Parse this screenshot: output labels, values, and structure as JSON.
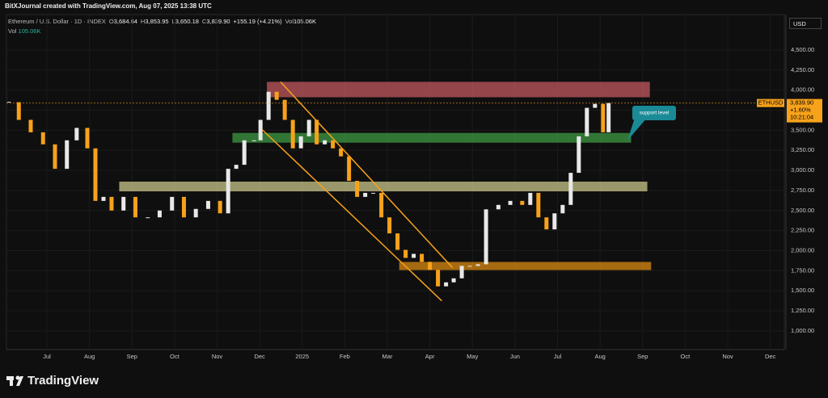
{
  "header": {
    "title": "BitXJournal created with TradingView.com, Aug 07, 2025 13:38 UTC",
    "symbol": "Ethereum / U.S. Dollar · 1D · INDEX",
    "ohlc": [
      {
        "key": "O",
        "text": "3,684.64"
      },
      {
        "key": "H",
        "text": "3,853.95"
      },
      {
        "key": "L",
        "text": "3,650.18"
      },
      {
        "key": "C",
        "text": "3,839.90"
      }
    ],
    "change": "+155.19 (+4.21%)",
    "vol_key": "Vol",
    "vol": "105.06K",
    "vol_row_key": "Vol",
    "vol_row": "105.06K"
  },
  "currency": "USD",
  "footer": {
    "brand": "TradingView"
  },
  "chart_data": {
    "type": "candlestick",
    "x": [
      -0.89,
      -0.66,
      -0.38,
      -0.09,
      0.19,
      0.47,
      0.7,
      0.95,
      1.14,
      1.33,
      1.52,
      1.8,
      2.08,
      2.37,
      2.65,
      2.94,
      3.22,
      3.5,
      3.79,
      4.07,
      4.26,
      4.45,
      4.64,
      4.87,
      5.02,
      5.21,
      5.4,
      5.59,
      5.78,
      5.97,
      6.16,
      6.34,
      6.53,
      6.72,
      6.91,
      7.1,
      7.29,
      7.48,
      7.67,
      7.86,
      8.05,
      8.24,
      8.43,
      8.62,
      8.81,
      9.0,
      9.19,
      9.38,
      9.56,
      9.75,
      9.94,
      10.13,
      10.32,
      10.61,
      10.89,
      11.17,
      11.36,
      11.55,
      11.74,
      11.93,
      12.12,
      12.31,
      12.5,
      12.69,
      12.88,
      13.07,
      13.2
    ],
    "values": [
      3850,
      3630,
      3475,
      3325,
      3020,
      3375,
      3530,
      3275,
      2620,
      2670,
      2500,
      2670,
      2415,
      2415,
      2500,
      2670,
      2415,
      2520,
      2620,
      2465,
      3020,
      3070,
      3375,
      3375,
      3630,
      3980,
      3880,
      3630,
      3275,
      3425,
      3630,
      3325,
      3375,
      3275,
      3175,
      2870,
      2670,
      2720,
      2720,
      2415,
      2215,
      2010,
      1910,
      1960,
      1860,
      1760,
      1555,
      1605,
      1655,
      1810,
      1810,
      1830,
      2515,
      2570,
      2620,
      2570,
      2720,
      2415,
      2265,
      2465,
      2570,
      2970,
      3425,
      3780,
      3830,
      3475,
      3839.9
    ],
    "up_color": "#e8e8e8",
    "down_color": "#f7a21b",
    "xlim": [
      -0.95,
      17.33
    ],
    "xticks": [
      {
        "value": 0,
        "label": "Jul"
      },
      {
        "value": 1,
        "label": "Aug"
      },
      {
        "value": 2,
        "label": "Sep"
      },
      {
        "value": 3,
        "label": "Oct"
      },
      {
        "value": 4,
        "label": "Nov"
      },
      {
        "value": 5,
        "label": "Dec"
      },
      {
        "value": 6,
        "label": "2025"
      },
      {
        "value": 7,
        "label": "Feb"
      },
      {
        "value": 8,
        "label": "Mar"
      },
      {
        "value": 9,
        "label": "Apr"
      },
      {
        "value": 10,
        "label": "May"
      },
      {
        "value": 11,
        "label": "Jun"
      },
      {
        "value": 12,
        "label": "Jul"
      },
      {
        "value": 13,
        "label": "Aug"
      },
      {
        "value": 14,
        "label": "Sep"
      },
      {
        "value": 15,
        "label": "Oct"
      },
      {
        "value": 16,
        "label": "Nov"
      },
      {
        "value": 17,
        "label": "Dec"
      }
    ],
    "ylim": [
      767,
      4943
    ],
    "yticks": [
      {
        "value": 1000,
        "label": "1,000.00"
      },
      {
        "value": 1250,
        "label": "1,250.00"
      },
      {
        "value": 1500,
        "label": "1,500.00"
      },
      {
        "value": 1750,
        "label": "1,750.00"
      },
      {
        "value": 2000,
        "label": "2,000.00"
      },
      {
        "value": 2250,
        "label": "2,250.00"
      },
      {
        "value": 2500,
        "label": "2,500.00"
      },
      {
        "value": 2750,
        "label": "2,750.00"
      },
      {
        "value": 3000,
        "label": "3,000.00"
      },
      {
        "value": 3250,
        "label": "3,250.00"
      },
      {
        "value": 3500,
        "label": "3,500.00"
      },
      {
        "value": 3750,
        "label": "3,750.00"
      },
      {
        "value": 4000,
        "label": "4,000.00"
      },
      {
        "value": 4250,
        "label": "4,250.00"
      },
      {
        "value": 4500,
        "label": "4,500.00"
      }
    ],
    "grid": true,
    "zones": [
      {
        "color": "#c0585f",
        "ylim": [
          3912,
          4104
        ],
        "xlim": [
          5.17,
          14.17
        ]
      },
      {
        "color": "#3f9a44",
        "ylim": [
          3346,
          3467
        ],
        "xlim": [
          4.36,
          13.73
        ]
      },
      {
        "color": "#c9c78a",
        "ylim": [
          2739,
          2860
        ],
        "xlim": [
          1.7,
          14.11
        ]
      },
      {
        "color": "#d98a12",
        "ylim": [
          1758,
          1859
        ],
        "xlim": [
          8.28,
          14.2
        ]
      }
    ],
    "channel": {
      "color": "#f7a21b",
      "lines": [
        {
          "x": [
            5.49,
            9.53
          ],
          "y": [
            4104,
            1789
          ]
        },
        {
          "x": [
            5.06,
            9.28
          ],
          "y": [
            3508,
            1374
          ]
        }
      ]
    },
    "last_price": {
      "symbol": "ETHUSD",
      "value": 3839.9,
      "label": "3,839.90",
      "change": "+1.60%",
      "countdown": "10:21:04"
    },
    "annotation": {
      "text": "support level",
      "color": "#1a8a96"
    }
  }
}
